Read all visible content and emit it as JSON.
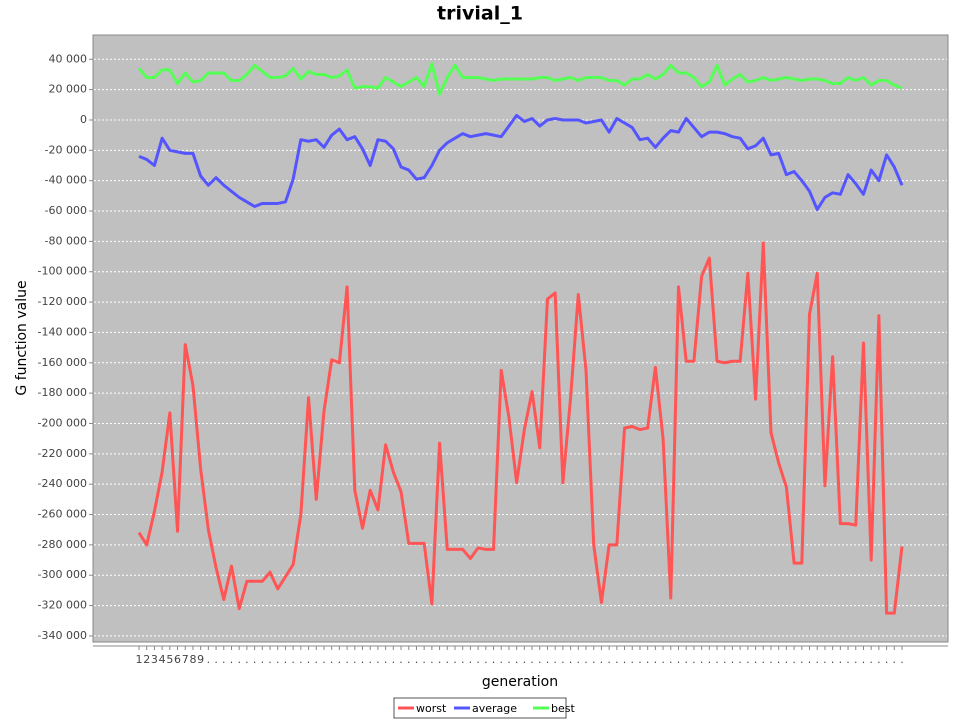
{
  "chart_data": {
    "type": "line",
    "title": "trivial_1",
    "x_label": "generation",
    "y_label": "G function value",
    "categories": [
      "1",
      "2",
      "3",
      "4",
      "5",
      "6",
      "7",
      "8",
      "9",
      ".",
      ".",
      ".",
      ".",
      ".",
      ".",
      ".",
      ".",
      ".",
      ".",
      ".",
      ".",
      ".",
      ".",
      ".",
      ".",
      ".",
      ".",
      ".",
      ".",
      ".",
      ".",
      ".",
      ".",
      ".",
      ".",
      ".",
      ".",
      ".",
      ".",
      ".",
      ".",
      ".",
      ".",
      ".",
      ".",
      ".",
      ".",
      ".",
      ".",
      ".",
      ".",
      ".",
      ".",
      ".",
      ".",
      ".",
      ".",
      ".",
      ".",
      ".",
      ".",
      ".",
      ".",
      ".",
      ".",
      ".",
      ".",
      ".",
      ".",
      ".",
      ".",
      ".",
      ".",
      ".",
      ".",
      ".",
      ".",
      ".",
      ".",
      ".",
      ".",
      ".",
      ".",
      ".",
      ".",
      ".",
      ".",
      ".",
      ".",
      ".",
      ".",
      ".",
      ".",
      ".",
      ".",
      ".",
      ".",
      ".",
      ".",
      "."
    ],
    "series": [
      {
        "name": "worst",
        "color": "#ff5555",
        "values": [
          -272000,
          -280000,
          -258000,
          -232000,
          -193000,
          -271000,
          -148000,
          -175000,
          -230000,
          -270000,
          -295000,
          -316000,
          -294000,
          -322000,
          -304000,
          -304000,
          -304000,
          -298000,
          -309000,
          -301000,
          -293000,
          -260000,
          -183000,
          -250000,
          -192000,
          -158000,
          -160000,
          -110000,
          -244000,
          -269000,
          -244000,
          -257000,
          -214000,
          -232000,
          -245000,
          -279000,
          -279000,
          -279000,
          -319000,
          -213000,
          -283000,
          -283000,
          -283000,
          -289000,
          -282000,
          -283000,
          -283000,
          -165000,
          -196000,
          -239000,
          -204000,
          -179000,
          -216000,
          -118000,
          -114000,
          -239000,
          -183000,
          -115000,
          -165000,
          -280000,
          -318000,
          -280000,
          -280000,
          -203000,
          -202000,
          -204000,
          -203000,
          -163000,
          -210000,
          -315000,
          -110000,
          -159000,
          -159000,
          -103000,
          -91000,
          -159000,
          -160000,
          -159000,
          -159000,
          -101000,
          -184000,
          -81000,
          -206000,
          -226000,
          -242000,
          -292000,
          -292000,
          -128000,
          -101000,
          -241000,
          -156000,
          -266000,
          -266000,
          -267000,
          -147000,
          -290000,
          -129000,
          -325000,
          -325000,
          -281000
        ]
      },
      {
        "name": "average",
        "color": "#5555ff",
        "values": [
          -24000,
          -26000,
          -30000,
          -12000,
          -20000,
          -21000,
          -22000,
          -22000,
          -37000,
          -43000,
          -38000,
          -43000,
          -47000,
          -51000,
          -54000,
          -57000,
          -55000,
          -55000,
          -55000,
          -54000,
          -39000,
          -13000,
          -14000,
          -13000,
          -18000,
          -10000,
          -6000,
          -13000,
          -11000,
          -19000,
          -30000,
          -13000,
          -14000,
          -19000,
          -31000,
          -33000,
          -39000,
          -38000,
          -30000,
          -20000,
          -15000,
          -12000,
          -9000,
          -11000,
          -10000,
          -9000,
          -10000,
          -11000,
          -4000,
          3000,
          -1000,
          1000,
          -4000,
          0,
          1000,
          0,
          0,
          0,
          -2000,
          -1000,
          0,
          -8000,
          1000,
          -2000,
          -5000,
          -13000,
          -12000,
          -18000,
          -12000,
          -7000,
          -8000,
          1000,
          -5000,
          -11000,
          -8000,
          -8000,
          -9000,
          -11000,
          -12000,
          -19000,
          -17000,
          -12000,
          -23000,
          -22000,
          -36000,
          -34000,
          -40000,
          -47000,
          -59000,
          -51000,
          -48000,
          -49000,
          -36000,
          -42000,
          -49000,
          -33000,
          -40000,
          -23000,
          -31000,
          -43000
        ]
      },
      {
        "name": "best",
        "color": "#55ff55",
        "values": [
          34000,
          28000,
          28000,
          33000,
          33000,
          24000,
          31000,
          25000,
          26000,
          31000,
          31000,
          31000,
          26000,
          26000,
          30000,
          36000,
          32000,
          28000,
          28000,
          29000,
          34000,
          27000,
          32000,
          30000,
          30000,
          28000,
          29000,
          33000,
          21000,
          22000,
          22000,
          21000,
          28000,
          25000,
          22000,
          25000,
          28000,
          22000,
          37000,
          17000,
          28000,
          36000,
          28000,
          28000,
          28000,
          27000,
          26000,
          27000,
          27000,
          27000,
          27000,
          27000,
          28000,
          28000,
          26000,
          27000,
          28000,
          26000,
          28000,
          28000,
          28000,
          26000,
          26000,
          23000,
          27000,
          27000,
          30000,
          27000,
          30000,
          36000,
          31000,
          31000,
          28000,
          22000,
          25000,
          36000,
          23000,
          27000,
          30000,
          25000,
          26000,
          28000,
          26000,
          27000,
          28000,
          27000,
          26000,
          27000,
          27000,
          26000,
          24000,
          24000,
          28000,
          26000,
          28000,
          23000,
          26000,
          26000,
          23000,
          21000
        ]
      }
    ],
    "ylim": [
      -344000,
      56000
    ],
    "yticks": [
      {
        "value": -340000,
        "label": "-340 000"
      },
      {
        "value": -320000,
        "label": "-320 000"
      },
      {
        "value": -300000,
        "label": "-300 000"
      },
      {
        "value": -280000,
        "label": "-280 000"
      },
      {
        "value": -260000,
        "label": "-260 000"
      },
      {
        "value": -240000,
        "label": "-240 000"
      },
      {
        "value": -220000,
        "label": "-220 000"
      },
      {
        "value": -200000,
        "label": "-200 000"
      },
      {
        "value": -180000,
        "label": "-180 000"
      },
      {
        "value": -160000,
        "label": "-160 000"
      },
      {
        "value": -140000,
        "label": "-140 000"
      },
      {
        "value": -120000,
        "label": "-120 000"
      },
      {
        "value": -100000,
        "label": "-100 000"
      },
      {
        "value": -80000,
        "label": "-80 000"
      },
      {
        "value": -60000,
        "label": "-60 000"
      },
      {
        "value": -40000,
        "label": "-40 000"
      },
      {
        "value": -20000,
        "label": "-20 000"
      },
      0,
      {
        "value": 20000,
        "label": "20 000"
      },
      {
        "value": 40000,
        "label": "40 000"
      }
    ],
    "grid": true,
    "legend": "bottom"
  }
}
